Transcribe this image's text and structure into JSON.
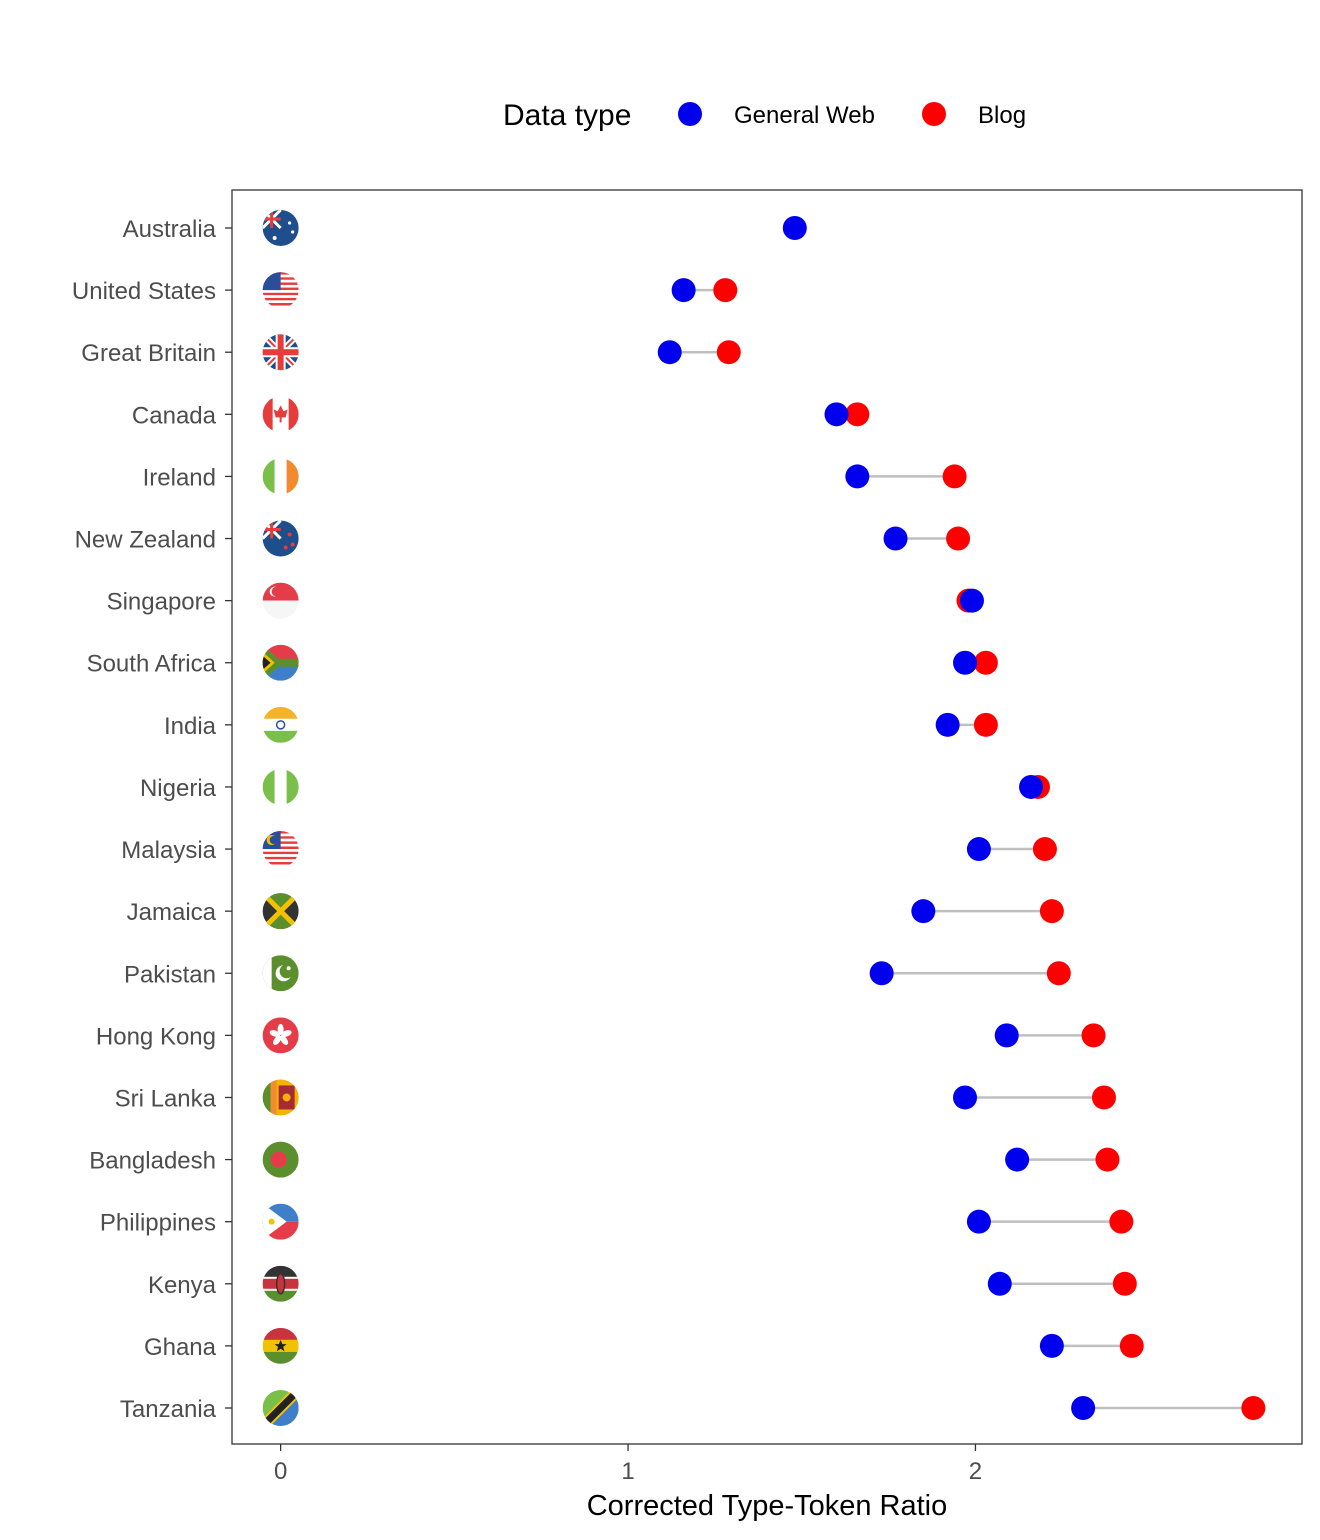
{
  "chart_data": {
    "type": "dumbbell",
    "xlabel": "Corrected Type-Token Ratio",
    "ylabel": "",
    "xlim": [
      -0.14,
      2.94
    ],
    "x_ticks": [
      0,
      1,
      2
    ],
    "grid": false,
    "legend": {
      "title": "Data type",
      "placement": "top",
      "entries": [
        {
          "name": "General Web",
          "color": "#0000ee"
        },
        {
          "name": "Blog",
          "color": "#ff0000"
        }
      ]
    },
    "categories": [
      "Australia",
      "United States",
      "Great Britain",
      "Canada",
      "Ireland",
      "New Zealand",
      "Singapore",
      "South Africa",
      "India",
      "Nigeria",
      "Malaysia",
      "Jamaica",
      "Pakistan",
      "Hong Kong",
      "Sri Lanka",
      "Bangladesh",
      "Philippines",
      "Kenya",
      "Ghana",
      "Tanzania"
    ],
    "flag_icons": [
      "flag-australia-icon",
      "flag-united-states-icon",
      "flag-great-britain-icon",
      "flag-canada-icon",
      "flag-ireland-icon",
      "flag-new-zealand-icon",
      "flag-singapore-icon",
      "flag-south-africa-icon",
      "flag-india-icon",
      "flag-nigeria-icon",
      "flag-malaysia-icon",
      "flag-jamaica-icon",
      "flag-pakistan-icon",
      "flag-hong-kong-icon",
      "flag-sri-lanka-icon",
      "flag-bangladesh-icon",
      "flag-philippines-icon",
      "flag-kenya-icon",
      "flag-ghana-icon",
      "flag-tanzania-icon"
    ],
    "series": [
      {
        "name": "General Web",
        "color": "#0000ee",
        "values": [
          1.48,
          1.16,
          1.12,
          1.6,
          1.66,
          1.77,
          1.99,
          1.97,
          1.92,
          2.16,
          2.01,
          1.85,
          1.73,
          2.09,
          1.97,
          2.12,
          2.01,
          2.07,
          2.22,
          2.31
        ]
      },
      {
        "name": "Blog",
        "color": "#ff0000",
        "values": [
          null,
          1.28,
          1.29,
          1.66,
          1.94,
          1.95,
          1.98,
          2.03,
          2.03,
          2.18,
          2.2,
          2.22,
          2.24,
          2.34,
          2.37,
          2.38,
          2.42,
          2.43,
          2.45,
          2.8
        ]
      }
    ],
    "connector_color": "#bfbfbf"
  }
}
